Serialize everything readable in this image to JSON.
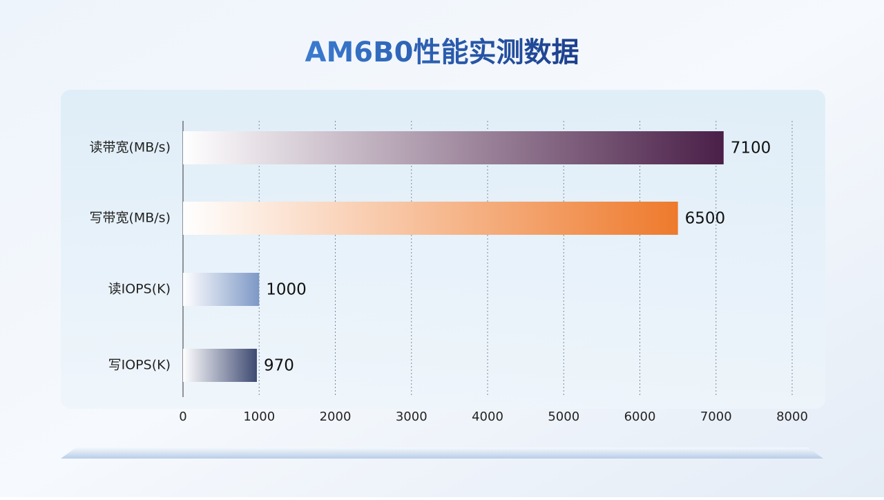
{
  "chart_data": {
    "type": "bar",
    "orientation": "horizontal",
    "title": "AM6B0性能实测数据",
    "categories": [
      "读带宽(MB/s)",
      "写带宽(MB/s)",
      "读IOPS(K)",
      "写IOPS(K)"
    ],
    "values": [
      7100,
      6500,
      1000,
      970
    ],
    "colors": [
      "#4a1f48",
      "#ee7a2c",
      "#7d98c6",
      "#3e4a72"
    ],
    "xlim": [
      0,
      8000
    ],
    "xticks": [
      0,
      1000,
      2000,
      3000,
      4000,
      5000,
      6000,
      7000,
      8000
    ],
    "grid": true
  }
}
